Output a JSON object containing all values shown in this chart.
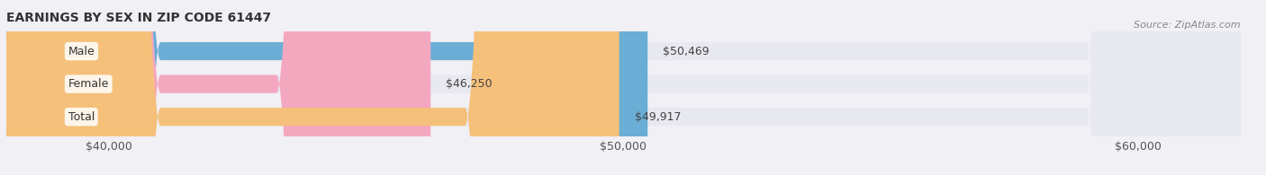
{
  "title": "EARNINGS BY SEX IN ZIP CODE 61447",
  "source": "Source: ZipAtlas.com",
  "categories": [
    "Male",
    "Female",
    "Total"
  ],
  "values": [
    50469,
    46250,
    49917
  ],
  "bar_colors": [
    "#6aaed6",
    "#f4a8c0",
    "#f5c07a"
  ],
  "label_colors": [
    "#6aaed6",
    "#f4a8c0",
    "#f5c07a"
  ],
  "value_labels": [
    "$50,469",
    "$46,250",
    "$49,917"
  ],
  "xmin": 38000,
  "xmax": 62000,
  "xticks": [
    40000,
    50000,
    60000
  ],
  "xtick_labels": [
    "$40,000",
    "$50,000",
    "$60,000"
  ],
  "background_color": "#f0f0f5",
  "bar_bg_color": "#e8e8f0",
  "title_fontsize": 10,
  "source_fontsize": 8,
  "label_fontsize": 9,
  "value_fontsize": 9,
  "tick_fontsize": 9
}
